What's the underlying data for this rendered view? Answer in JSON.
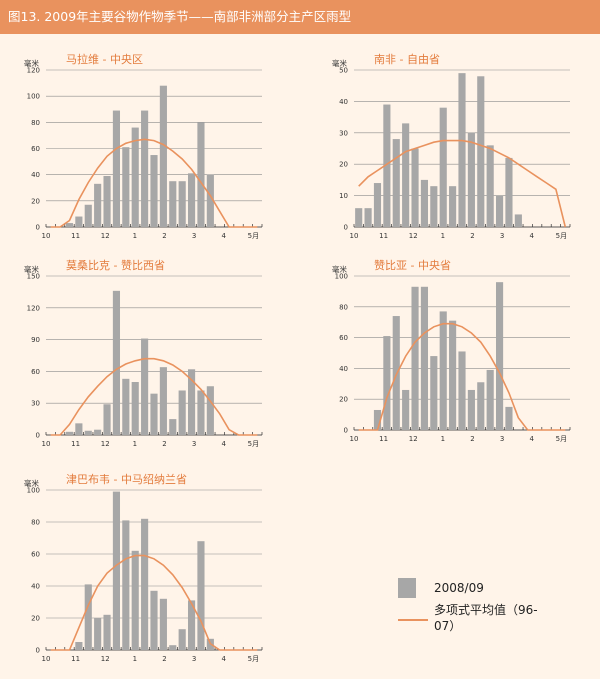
{
  "header": {
    "title": "图13. 2009年主要谷物作物季节——南部非洲部分主产区雨型"
  },
  "colors": {
    "header": "#e9925e",
    "panel": "#fff4e9",
    "bar": "#a7a7a7",
    "curve": "#e9925e",
    "title": "#e37b3c"
  },
  "legend": {
    "bar_label": "2008/09",
    "line_label": "多项式平均值（96-07）"
  },
  "chart_data": [
    {
      "type": "bar",
      "title": "马拉维 - 中央区",
      "ylabel": "毫米",
      "ylim": [
        0,
        120
      ],
      "yticks": [
        0,
        20,
        40,
        60,
        80,
        100,
        120
      ],
      "x_ticks": [
        "10",
        "11",
        "12",
        "1",
        "2",
        "3",
        "4",
        "5月"
      ],
      "values": [
        0,
        0,
        3,
        8,
        17,
        33,
        39,
        89,
        61,
        76,
        89,
        55,
        108,
        35,
        35,
        41,
        80,
        40,
        0,
        0,
        0,
        0,
        0
      ],
      "series": [
        {
          "name": "多项式平均值（96-07）",
          "values": [
            0,
            0,
            5,
            21,
            34,
            45,
            54,
            60,
            64,
            66,
            67,
            66,
            63,
            58,
            52,
            44,
            34,
            24,
            12,
            0,
            0,
            0,
            0
          ]
        }
      ]
    },
    {
      "type": "bar",
      "title": "南非 - 自由省",
      "ylabel": "毫米",
      "ylim": [
        0,
        50
      ],
      "yticks": [
        0,
        10,
        20,
        30,
        40,
        50
      ],
      "x_ticks": [
        "10",
        "11",
        "12",
        "1",
        "2",
        "3",
        "4",
        "5月"
      ],
      "values": [
        6,
        6,
        14,
        39,
        28,
        33,
        25,
        15,
        13,
        38,
        13,
        49,
        30,
        48,
        26,
        10,
        22,
        4,
        0,
        0,
        0,
        0,
        0
      ],
      "series": [
        {
          "name": "多项式平均值（96-07）",
          "values": [
            13,
            16,
            18,
            20,
            22,
            24,
            25,
            26,
            27,
            27.5,
            27.5,
            27.5,
            27,
            26,
            25,
            23.5,
            22,
            20,
            18,
            16,
            14,
            12,
            0
          ]
        }
      ]
    },
    {
      "type": "bar",
      "title": "莫桑比克 - 赞比西省",
      "ylabel": "毫米",
      "ylim": [
        0,
        150
      ],
      "yticks": [
        0,
        30,
        60,
        90,
        120,
        150
      ],
      "x_ticks": [
        "10",
        "11",
        "12",
        "1",
        "2",
        "3",
        "4",
        "5月"
      ],
      "values": [
        0,
        0,
        3,
        11,
        4,
        5,
        29,
        136,
        53,
        50,
        91,
        39,
        64,
        15,
        42,
        62,
        42,
        46,
        0,
        0,
        0,
        0,
        0
      ],
      "series": [
        {
          "name": "多项式平均值（96-07）",
          "values": [
            0,
            0,
            10,
            24,
            36,
            46,
            55,
            62,
            67,
            70,
            72,
            72,
            70,
            66,
            60,
            52,
            43,
            32,
            20,
            5,
            0,
            0,
            0
          ]
        }
      ]
    },
    {
      "type": "bar",
      "title": "赞比亚 - 中央省",
      "ylabel": "毫米",
      "ylim": [
        0,
        100
      ],
      "yticks": [
        0,
        20,
        40,
        60,
        80,
        100
      ],
      "x_ticks": [
        "10",
        "11",
        "12",
        "1",
        "2",
        "3",
        "4",
        "5月"
      ],
      "values": [
        0,
        0,
        13,
        61,
        74,
        26,
        93,
        93,
        48,
        77,
        71,
        51,
        26,
        31,
        39,
        96,
        15,
        0,
        0,
        0,
        0,
        0,
        0
      ],
      "series": [
        {
          "name": "多项式平均值（96-07）",
          "values": [
            0,
            0,
            0,
            21,
            36,
            48,
            57,
            63,
            67,
            69,
            69,
            67,
            63,
            57,
            48,
            37,
            24,
            8,
            0,
            0,
            0,
            0,
            0
          ]
        }
      ]
    },
    {
      "type": "bar",
      "title": "津巴布韦 - 中马绍纳兰省",
      "ylabel": "毫米",
      "ylim": [
        0,
        100
      ],
      "yticks": [
        0,
        20,
        40,
        60,
        80,
        100
      ],
      "x_ticks": [
        "10",
        "11",
        "12",
        "1",
        "2",
        "3",
        "4",
        "5月"
      ],
      "values": [
        0,
        0,
        0,
        5,
        41,
        20,
        22,
        99,
        81,
        62,
        82,
        37,
        32,
        3,
        13,
        31,
        68,
        7,
        0,
        0,
        0,
        0,
        0
      ],
      "series": [
        {
          "name": "多项式平均值（96-07）",
          "values": [
            0,
            0,
            0,
            14,
            28,
            40,
            48,
            53,
            57,
            59,
            59,
            57,
            53,
            47,
            39,
            29,
            18,
            4,
            0,
            0,
            0,
            0,
            0
          ]
        }
      ]
    }
  ]
}
